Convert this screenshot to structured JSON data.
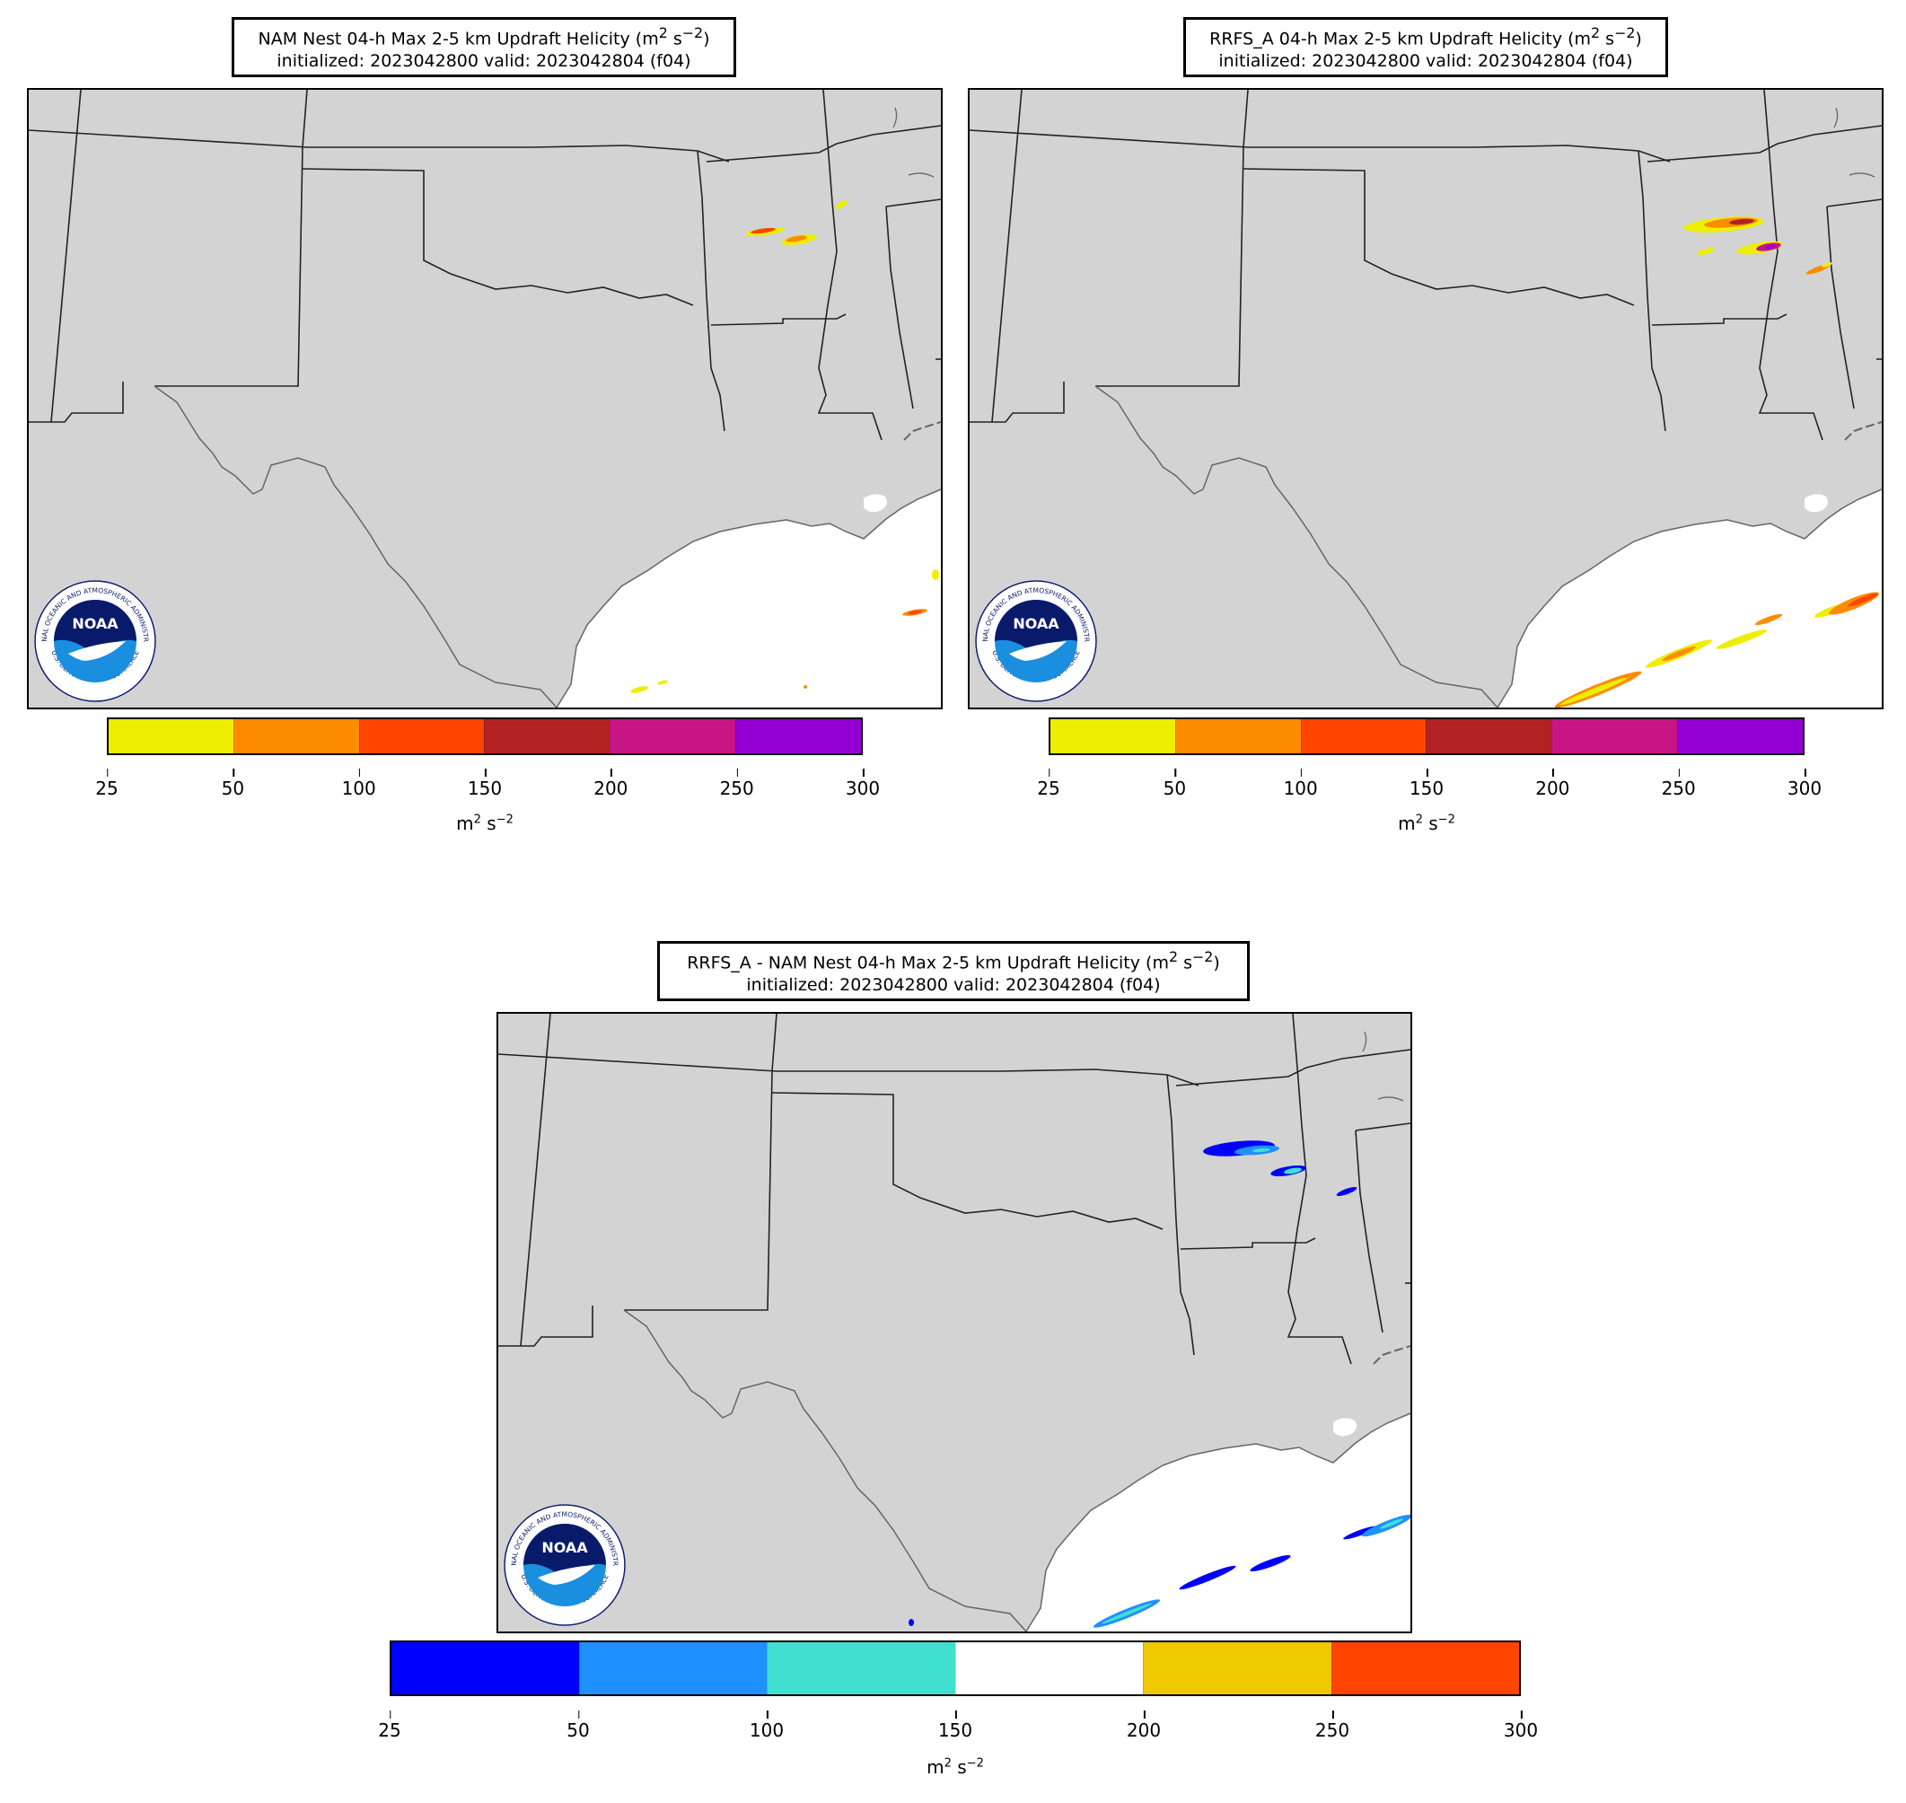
{
  "panels": [
    {
      "title_line1_pre": "NAM Nest 04-h Max 2-5 km Updraft Helicity (m",
      "title_line2": "initialized: 2023042800 valid: 2023042804 (f04)",
      "colorbar": {
        "ticks": [
          "25",
          "50",
          "100",
          "150",
          "200",
          "250",
          "300"
        ],
        "colors": [
          "#eeee00",
          "#ff8c00",
          "#ff4500",
          "#b22222",
          "#c71585",
          "#9400d3"
        ],
        "unit": "m"
      }
    },
    {
      "title_line1_pre": "RRFS_A 04-h Max 2-5 km Updraft Helicity (m",
      "title_line2": "initialized: 2023042800 valid: 2023042804 (f04)",
      "colorbar": {
        "ticks": [
          "25",
          "50",
          "100",
          "150",
          "200",
          "250",
          "300"
        ],
        "colors": [
          "#eeee00",
          "#ff8c00",
          "#ff4500",
          "#b22222",
          "#c71585",
          "#9400d3"
        ],
        "unit": "m"
      }
    },
    {
      "title_line1_pre": "RRFS_A - NAM Nest 04-h Max 2-5 km Updraft Helicity (m",
      "title_line2": "initialized: 2023042800 valid: 2023042804 (f04)",
      "colorbar": {
        "ticks": [
          "25",
          "50",
          "100",
          "150",
          "200",
          "250",
          "300"
        ],
        "colors": [
          "#0000ff",
          "#1e90ff",
          "#40e0d0",
          "#ffffff",
          "#eec900",
          "#ff4500"
        ],
        "unit": "m"
      }
    }
  ],
  "units_text": {
    "s": "s",
    "exp2": "2",
    "expneg2": "−2"
  },
  "logo": {
    "brand": "NOAA",
    "ring_top": "NATIONAL OCEANIC AND ATMOSPHERIC ADMINISTRATION",
    "ring_bottom": "U.S. DEPARTMENT OF COMMERCE",
    "color_dark": "#0a1a6b",
    "color_light": "#1a8fe0"
  },
  "map_colors": {
    "land": "#d3d3d3",
    "water": "#ffffff",
    "borders": "#222222",
    "coast": "#666666"
  }
}
